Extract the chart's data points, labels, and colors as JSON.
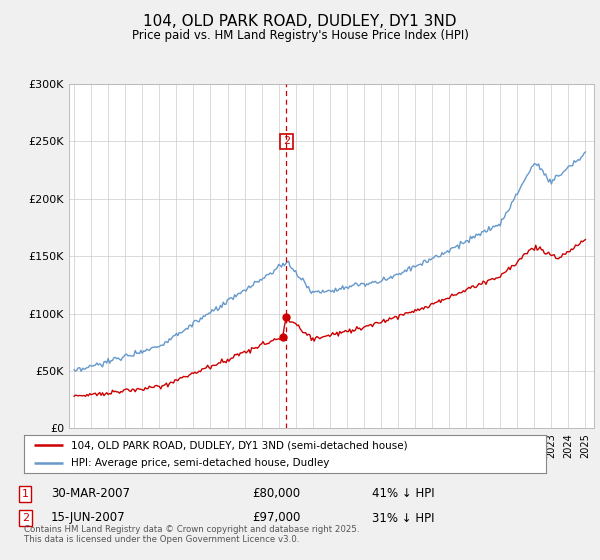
{
  "title": "104, OLD PARK ROAD, DUDLEY, DY1 3ND",
  "subtitle": "Price paid vs. HM Land Registry's House Price Index (HPI)",
  "red_label": "104, OLD PARK ROAD, DUDLEY, DY1 3ND (semi-detached house)",
  "blue_label": "HPI: Average price, semi-detached house, Dudley",
  "transaction1_date": "30-MAR-2007",
  "transaction1_price": 80000,
  "transaction1_label": "1",
  "transaction1_pct": "41% ↓ HPI",
  "transaction2_date": "15-JUN-2007",
  "transaction2_price": 97000,
  "transaction2_label": "2",
  "transaction2_pct": "31% ↓ HPI",
  "vline_x": 2007.46,
  "marker1_x": 2007.23,
  "marker2_x": 2007.46,
  "footer": "Contains HM Land Registry data © Crown copyright and database right 2025.\nThis data is licensed under the Open Government Licence v3.0.",
  "ylim": [
    0,
    300000
  ],
  "xlim": [
    1994.7,
    2025.5
  ],
  "background": "#f0f0f0",
  "plot_bg": "#ffffff",
  "red_color": "#cc0000",
  "blue_color": "#6699cc"
}
